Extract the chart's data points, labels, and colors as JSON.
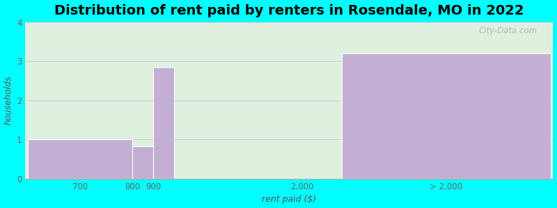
{
  "title": "Distribution of rent paid by renters in Rosendale, MO in 2022",
  "xlabel": "rent paid ($)",
  "ylabel": "households",
  "tick_labels": [
    "700",
    "800",
    "900",
    "2,000",
    "> 2,000"
  ],
  "values": [
    1.0,
    0.83,
    2.85,
    0.0,
    3.2
  ],
  "bar_color": "#c4afd4",
  "bar_edgecolor": "#ffffff",
  "plot_bg_color": "#dff0df",
  "fig_bg_color": "#00ffff",
  "ylim": [
    0,
    4
  ],
  "yticks": [
    0,
    1,
    2,
    3,
    4
  ],
  "title_fontsize": 14,
  "axis_label_fontsize": 9,
  "tick_fontsize": 8.5,
  "watermark_text": "City-Data.com",
  "x_positions": [
    0,
    2.0,
    2.4,
    4.5,
    6.0
  ],
  "bar_widths": [
    2.0,
    0.4,
    0.4,
    1.5,
    4.0
  ],
  "xlim": [
    -0.05,
    10.05
  ]
}
